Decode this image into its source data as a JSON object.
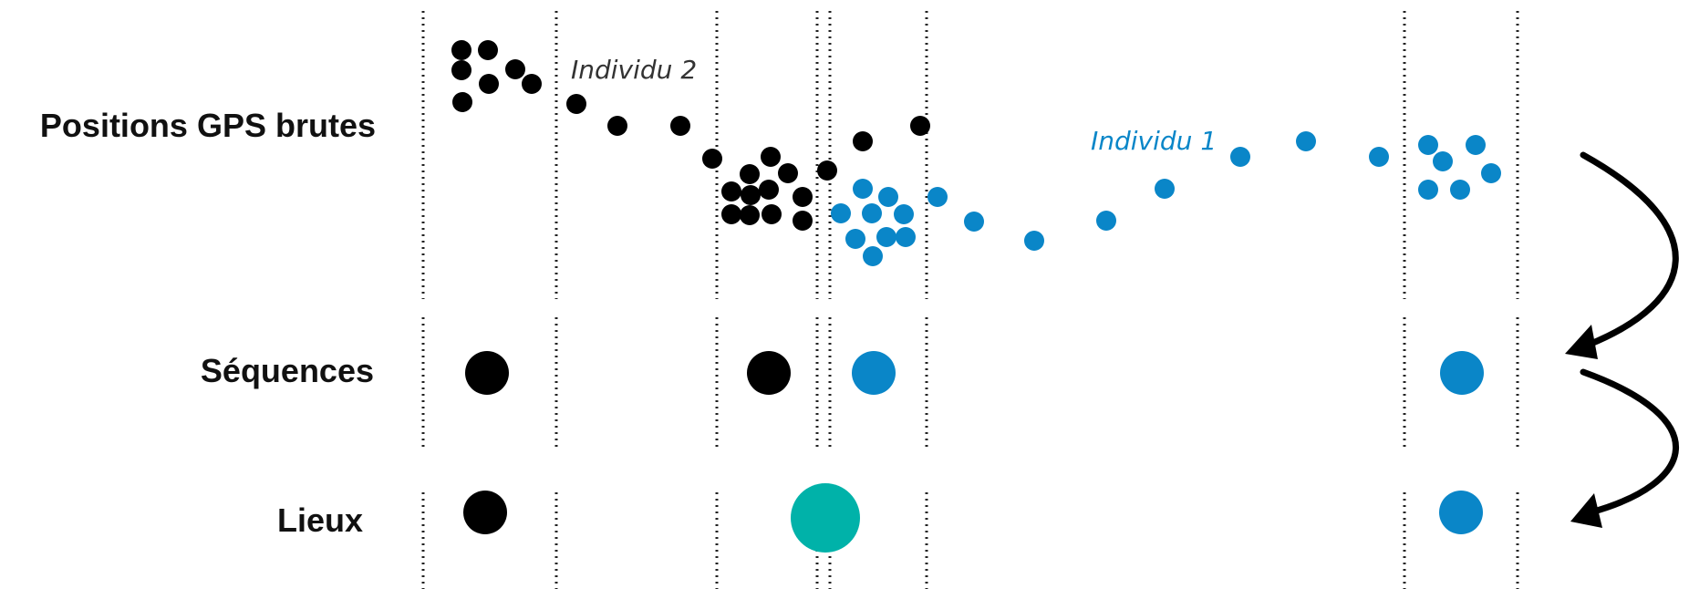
{
  "rows": {
    "raw": "Positions GPS brutes",
    "sequences": "Séquences",
    "places": "Lieux"
  },
  "individuals": {
    "ind1": "Individu 1",
    "ind2": "Individu 2"
  },
  "colors": {
    "individual1": "#0A86C8",
    "individual2": "#000000",
    "shared_place": "#00B2A9",
    "divider": "#222222",
    "text": "#111111"
  }
}
